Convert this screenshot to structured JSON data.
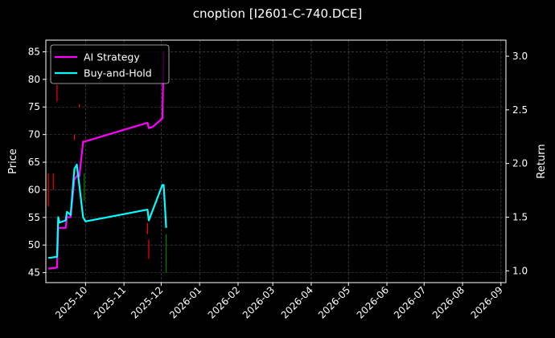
{
  "title": "cnoption [I2601-C-740.DCE]",
  "chart_data": {
    "type": "line",
    "title": "cnoption [I2601-C-740.DCE]",
    "xlabel": "",
    "ylabel": "Price",
    "y2label": "Return",
    "ylim": [
      43.2,
      87.1
    ],
    "y2lim": [
      0.89,
      3.15
    ],
    "grid": true,
    "legend_position": "upper left",
    "x_ticks": [
      "2025-10",
      "2025-11",
      "2025-12",
      "2026-01",
      "2026-02",
      "2026-03",
      "2026-04",
      "2026-05",
      "2026-06",
      "2026-07",
      "2026-08",
      "2026-09"
    ],
    "y_ticks": [
      45,
      50,
      55,
      60,
      65,
      70,
      75,
      80,
      85
    ],
    "y2_ticks": [
      1.0,
      1.5,
      2.0,
      2.5,
      3.0
    ],
    "legend": [
      "AI Strategy",
      "Buy-and-Hold"
    ],
    "series": [
      {
        "name": "AI Strategy",
        "axis": "right",
        "color": "#ff00ff",
        "points": [
          [
            "2025-09-01",
            1.02
          ],
          [
            "2025-09-08",
            1.03
          ],
          [
            "2025-09-09",
            1.4
          ],
          [
            "2025-09-15",
            1.4
          ],
          [
            "2025-09-16",
            1.5
          ],
          [
            "2025-09-19",
            1.5
          ],
          [
            "2025-09-22",
            1.85
          ],
          [
            "2025-09-25",
            1.9
          ],
          [
            "2025-09-26",
            1.88
          ],
          [
            "2025-09-29",
            2.2
          ],
          [
            "2025-11-20",
            2.38
          ],
          [
            "2025-11-21",
            2.33
          ],
          [
            "2025-11-24",
            2.34
          ],
          [
            "2025-12-02",
            2.42
          ],
          [
            "2025-12-03",
            3.05
          ]
        ]
      },
      {
        "name": "Buy-and-Hold",
        "axis": "right",
        "color": "#00ffff",
        "points": [
          [
            "2025-09-01",
            1.12
          ],
          [
            "2025-09-08",
            1.13
          ],
          [
            "2025-09-09",
            1.5
          ],
          [
            "2025-09-10",
            1.45
          ],
          [
            "2025-09-15",
            1.47
          ],
          [
            "2025-09-16",
            1.55
          ],
          [
            "2025-09-19",
            1.52
          ],
          [
            "2025-09-22",
            1.95
          ],
          [
            "2025-09-24",
            1.99
          ],
          [
            "2025-09-26",
            1.8
          ],
          [
            "2025-09-29",
            1.5
          ],
          [
            "2025-10-01",
            1.46
          ],
          [
            "2025-11-20",
            1.57
          ],
          [
            "2025-11-21",
            1.47
          ],
          [
            "2025-12-02",
            1.8
          ],
          [
            "2025-12-03",
            1.8
          ],
          [
            "2025-12-05",
            1.4
          ]
        ]
      }
    ],
    "candles": [
      {
        "date": "2025-09-01",
        "low": 57,
        "high": 63,
        "color": "#ff0000"
      },
      {
        "date": "2025-09-05",
        "low": 60,
        "high": 63,
        "color": "#ff0000"
      },
      {
        "date": "2025-09-08",
        "low": 76,
        "high": 79,
        "color": "#ff0000"
      },
      {
        "date": "2025-09-22",
        "low": 69,
        "high": 70,
        "color": "#ff0000"
      },
      {
        "date": "2025-09-26",
        "low": 75,
        "high": 75.5,
        "color": "#ff0000"
      },
      {
        "date": "2025-09-29",
        "low": 68,
        "high": 69,
        "color": "#ff0000"
      },
      {
        "date": "2025-09-30",
        "low": 58,
        "high": 63,
        "color": "#008000"
      },
      {
        "date": "2025-11-20",
        "low": 52,
        "high": 54,
        "color": "#ff0000"
      },
      {
        "date": "2025-11-21",
        "low": 47.5,
        "high": 51,
        "color": "#ff0000"
      },
      {
        "date": "2025-12-05",
        "low": 45,
        "high": 52,
        "color": "#008000"
      }
    ]
  }
}
